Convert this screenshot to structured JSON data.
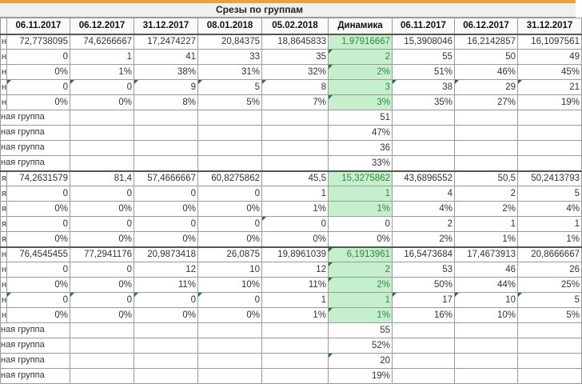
{
  "title": "Срезы по группам",
  "accent": "#f0a030",
  "highlight_fill": "#c6efce",
  "headers": [
    "",
    "06.11.2017",
    "06.12.2017",
    "31.12.2017",
    "08.01.2018",
    "05.02.2018",
    "Динамика",
    "06.11.2017",
    "06.12.2017",
    "31.12.2017"
  ],
  "rows": [
    {
      "label": "н",
      "values": [
        "72,7738095",
        "74,6266667",
        "17,2474227",
        "20,84375",
        "18,8645833",
        "1,97916667",
        "15,3908046",
        "16,2142857",
        "16,1097561"
      ],
      "green": true
    },
    {
      "label": "н",
      "values": [
        "0",
        "1",
        "41",
        "33",
        "35",
        "2",
        "55",
        "50",
        "49"
      ],
      "green": true,
      "marks": [
        6
      ]
    },
    {
      "label": "н",
      "values": [
        "0%",
        "1%",
        "38%",
        "31%",
        "32%",
        "2%",
        "51%",
        "46%",
        "45%"
      ],
      "green": true,
      "marks": [
        6
      ]
    },
    {
      "label": "н",
      "values": [
        "0",
        "0",
        "9",
        "5",
        "8",
        "3",
        "38",
        "29",
        "21"
      ],
      "green": true,
      "marks": [
        1,
        2,
        3,
        4,
        5,
        7,
        8,
        9
      ]
    },
    {
      "label": "н",
      "values": [
        "0%",
        "0%",
        "8%",
        "5%",
        "7%",
        "3%",
        "35%",
        "27%",
        "19%"
      ],
      "green": true,
      "marks": [
        6
      ]
    },
    {
      "group": "ная группа",
      "dyn": "51"
    },
    {
      "group": "ная группа",
      "dyn": "47%"
    },
    {
      "group": "ная группа",
      "dyn": "36"
    },
    {
      "group": "ная группа",
      "dyn": "33%"
    },
    {
      "label": "я",
      "values": [
        "74,2631579",
        "81,4",
        "57,4666667",
        "60,8275862",
        "45,5",
        "15,3275862",
        "43,6896552",
        "50,5",
        "50,2413793"
      ],
      "green": true,
      "sep": true
    },
    {
      "label": "я",
      "values": [
        "0",
        "0",
        "0",
        "0",
        "1",
        "1",
        "4",
        "2",
        "5"
      ],
      "green": true
    },
    {
      "label": "я",
      "values": [
        "0%",
        "0%",
        "0%",
        "0%",
        "1%",
        "1%",
        "4%",
        "2%",
        "4%"
      ],
      "green": true
    },
    {
      "label": "я",
      "values": [
        "0",
        "0",
        "0",
        "0",
        "0",
        "0",
        "2",
        "1",
        "1"
      ],
      "marks": [
        5
      ]
    },
    {
      "label": "я",
      "values": [
        "0%",
        "0%",
        "0%",
        "0%",
        "0%",
        "0%",
        "2%",
        "1%",
        "1%"
      ]
    },
    {
      "label": "н",
      "values": [
        "76,4545455",
        "77,2941176",
        "20,9873418",
        "26,0875",
        "19,8961039",
        "6,1913961",
        "16,5473684",
        "17,4673913",
        "20,8666667"
      ],
      "green": true,
      "sep": true,
      "marks": [
        6
      ]
    },
    {
      "label": "н",
      "values": [
        "0",
        "0",
        "12",
        "10",
        "12",
        "2",
        "53",
        "46",
        "26"
      ],
      "green": true,
      "marks": [
        6
      ]
    },
    {
      "label": "н",
      "values": [
        "0%",
        "0%",
        "11%",
        "10%",
        "11%",
        "2%",
        "50%",
        "44%",
        "25%"
      ],
      "green": true,
      "marks": [
        6
      ]
    },
    {
      "label": "н",
      "values": [
        "0",
        "0",
        "0",
        "0",
        "1",
        "1",
        "17",
        "10",
        "5"
      ],
      "green": true,
      "marks": [
        1,
        2,
        3,
        4,
        7,
        8,
        9
      ]
    },
    {
      "label": "н",
      "values": [
        "0%",
        "0%",
        "0%",
        "0%",
        "1%",
        "1%",
        "16%",
        "10%",
        "5%"
      ],
      "green": true,
      "marks": [
        6
      ]
    },
    {
      "group": "ная группа",
      "dyn": "55"
    },
    {
      "group": "ная группа",
      "dyn": "52%"
    },
    {
      "group": "ная группа",
      "dyn": "20",
      "marks": [
        6
      ]
    },
    {
      "group": "ная группа",
      "dyn": "19%"
    }
  ]
}
